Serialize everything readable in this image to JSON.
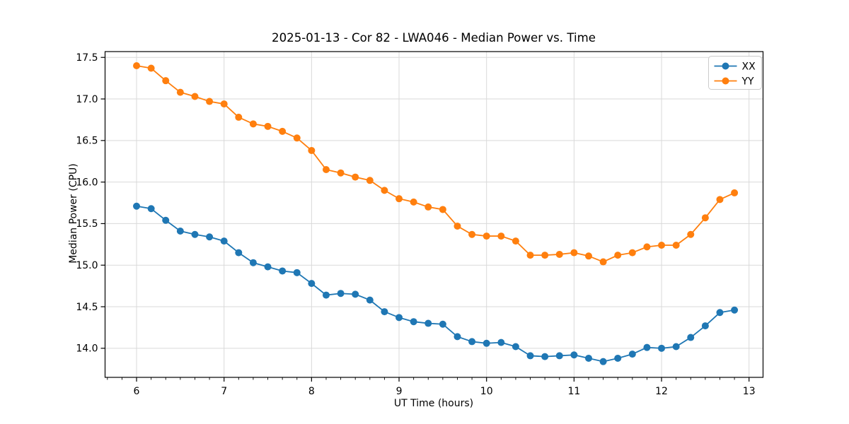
{
  "figure": {
    "title": "2025-01-13 - Cor 82 - LWA046 - Median Power vs. Time"
  },
  "chart_data": {
    "type": "line",
    "title": "2025-01-13 - Cor 82 - LWA046 - Median Power vs. Time",
    "xlabel": "UT Time (hours)",
    "ylabel": "Median Power (CPU)",
    "xlim": [
      5.64,
      13.16
    ],
    "ylim": [
      13.65,
      17.57
    ],
    "x_ticks": [
      6,
      7,
      8,
      9,
      10,
      11,
      12,
      13
    ],
    "x_tick_labels": [
      "6",
      "7",
      "8",
      "9",
      "10",
      "11",
      "12",
      "13"
    ],
    "x_minor_tick_step_hours": 0.166667,
    "y_ticks": [
      14.0,
      14.5,
      15.0,
      15.5,
      16.0,
      16.5,
      17.0,
      17.5
    ],
    "y_tick_labels": [
      "14.0",
      "14.5",
      "15.0",
      "15.5",
      "16.0",
      "16.5",
      "17.0",
      "17.5"
    ],
    "grid": true,
    "legend_position": "upper right",
    "x": [
      6.0,
      6.1667,
      6.3333,
      6.5,
      6.6667,
      6.8333,
      7.0,
      7.1667,
      7.3333,
      7.5,
      7.6667,
      7.8333,
      8.0,
      8.1667,
      8.3333,
      8.5,
      8.6667,
      8.8333,
      9.0,
      9.1667,
      9.3333,
      9.5,
      9.6667,
      9.8333,
      10.0,
      10.1667,
      10.3333,
      10.5,
      10.6667,
      10.8333,
      11.0,
      11.1667,
      11.3333,
      11.5,
      11.6667,
      11.8333,
      12.0,
      12.1667,
      12.3333,
      12.5,
      12.6667,
      12.8333
    ],
    "series": [
      {
        "name": "XX",
        "color": "#1f77b4",
        "values": [
          15.71,
          15.68,
          15.54,
          15.41,
          15.37,
          15.34,
          15.29,
          15.15,
          15.03,
          14.98,
          14.93,
          14.91,
          14.78,
          14.64,
          14.66,
          14.65,
          14.58,
          14.44,
          14.37,
          14.32,
          14.3,
          14.29,
          14.14,
          14.08,
          14.06,
          14.07,
          14.02,
          13.91,
          13.9,
          13.91,
          13.92,
          13.88,
          13.84,
          13.88,
          13.93,
          14.01,
          14.0,
          14.02,
          14.13,
          14.27,
          14.43,
          14.46
        ]
      },
      {
        "name": "YY",
        "color": "#ff7f0e",
        "values": [
          17.4,
          17.37,
          17.22,
          17.08,
          17.03,
          16.97,
          16.94,
          16.78,
          16.7,
          16.67,
          16.61,
          16.53,
          16.38,
          16.15,
          16.11,
          16.06,
          16.02,
          15.9,
          15.8,
          15.76,
          15.7,
          15.67,
          15.47,
          15.37,
          15.35,
          15.35,
          15.29,
          15.12,
          15.12,
          15.13,
          15.15,
          15.11,
          15.04,
          15.12,
          15.15,
          15.22,
          15.24,
          15.24,
          15.37,
          15.57,
          15.79,
          15.87
        ]
      }
    ],
    "style": {
      "grid_color": "#d9d9d9",
      "spine_color": "#000000",
      "legend_border_color": "#cccccc",
      "legend_background": "#ffffff",
      "background": "#ffffff"
    }
  }
}
